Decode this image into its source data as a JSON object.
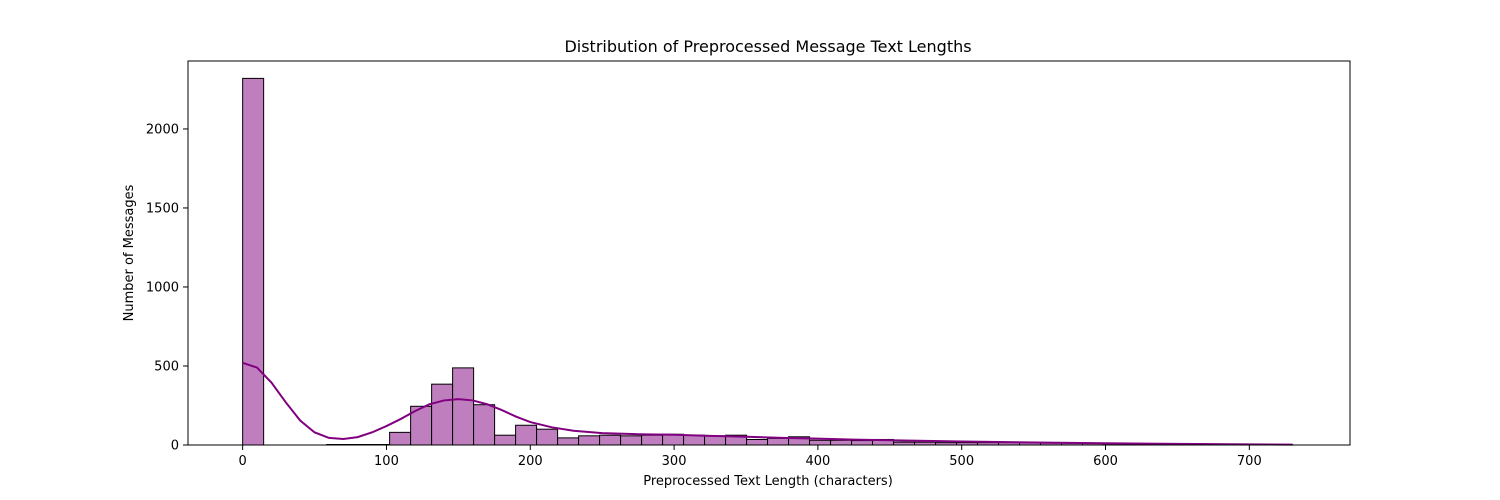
{
  "colors": {
    "bar_fill": "#bf7fbf",
    "bar_edge": "#000000",
    "kde_line": "#800080"
  },
  "chart_data": {
    "type": "bar",
    "title": "Distribution of Preprocessed Message Text Lengths",
    "xlabel": "Preprocessed Text Length (characters)",
    "ylabel": "Number of Messages",
    "xlim": [
      -38,
      770
    ],
    "ylim": [
      0,
      2430
    ],
    "xticks": [
      0,
      100,
      200,
      300,
      400,
      500,
      600,
      700
    ],
    "yticks": [
      0,
      500,
      1000,
      1500,
      2000
    ],
    "grid": false,
    "legend": "none",
    "bin_width": 14.6,
    "bin_start": 0,
    "bin_counts": [
      2320,
      0,
      0,
      0,
      3,
      3,
      3,
      80,
      245,
      385,
      488,
      255,
      62,
      125,
      100,
      45,
      58,
      62,
      58,
      62,
      68,
      62,
      58,
      62,
      35,
      42,
      52,
      30,
      30,
      28,
      35,
      18,
      18,
      15,
      15,
      15,
      15,
      15,
      12,
      12,
      12,
      8,
      8,
      5,
      5,
      5,
      5,
      5,
      5,
      3
    ],
    "kde": {
      "name": "",
      "x": [
        0,
        10,
        20,
        30,
        40,
        50,
        60,
        70,
        80,
        90,
        100,
        110,
        120,
        130,
        140,
        150,
        160,
        170,
        180,
        190,
        200,
        215,
        230,
        250,
        275,
        300,
        325,
        350,
        375,
        400,
        425,
        450,
        475,
        500,
        550,
        600,
        650,
        700,
        730
      ],
      "y": [
        520,
        490,
        395,
        270,
        155,
        80,
        45,
        38,
        50,
        80,
        120,
        165,
        215,
        258,
        282,
        290,
        282,
        258,
        222,
        180,
        145,
        112,
        90,
        75,
        68,
        65,
        58,
        52,
        45,
        40,
        34,
        30,
        26,
        22,
        16,
        11,
        7,
        4,
        2
      ]
    }
  }
}
